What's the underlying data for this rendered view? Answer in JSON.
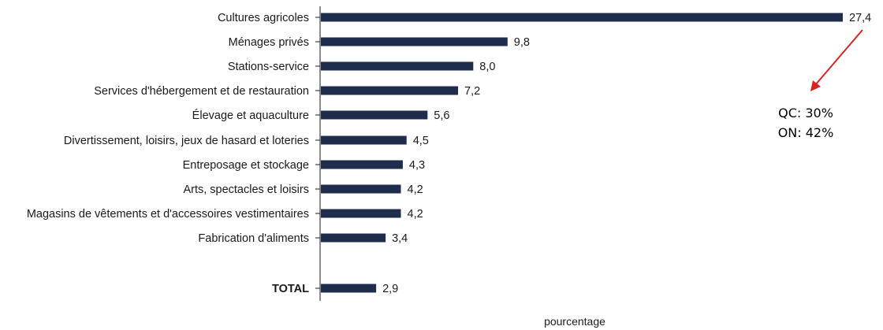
{
  "chart_data": {
    "type": "bar",
    "orientation": "horizontal",
    "categories": [
      "Cultures agricoles",
      "Ménages privés",
      "Stations-service",
      "Services d'hébergement et de restauration",
      "Élevage et aquaculture",
      "Divertissement, loisirs, jeux de hasard et loteries",
      "Entreposage et stockage",
      "Arts, spectacles et loisirs",
      "Magasins de vêtements et d'accessoires vestimentaires",
      "Fabrication d'aliments",
      "TOTAL"
    ],
    "values": [
      27.4,
      9.8,
      8.0,
      7.2,
      5.6,
      4.5,
      4.3,
      4.2,
      4.2,
      3.4,
      2.9
    ],
    "value_labels": [
      "27,4",
      "9,8",
      "8,0",
      "7,2",
      "5,6",
      "4,5",
      "4,3",
      "4,2",
      "4,2",
      "3,4",
      "2,9"
    ],
    "xlabel": "pourcentage",
    "xlim": [
      0,
      28
    ],
    "grid": false,
    "legend": "none",
    "bar_color": "#1f2d4d",
    "annotations": [
      {
        "text": "QC: 30%",
        "color": "#e02020"
      },
      {
        "text": "ON: 42%",
        "color": "#e02020"
      }
    ],
    "annotation_arrow_color": "#e02020"
  }
}
